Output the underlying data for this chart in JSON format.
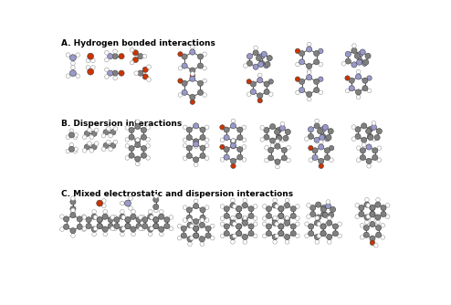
{
  "section_A": "A. Hydrogen bonded interactions",
  "section_B": "B. Dispersion interactions",
  "section_C": "C. Mixed electrostatic and dispersion interactions",
  "bg_color": "#ffffff",
  "text_color": "#000000",
  "C_col": "#808080",
  "N_col": "#9999cc",
  "O_col": "#cc3300",
  "H_col": "#ffffff",
  "H_outline": "#999999",
  "bond_col": "#555555"
}
